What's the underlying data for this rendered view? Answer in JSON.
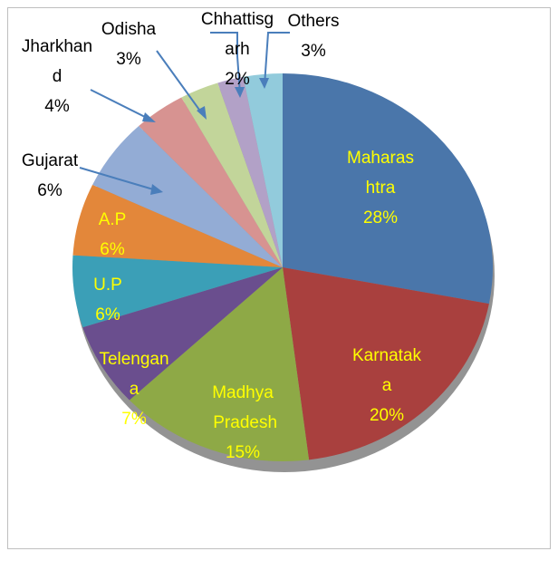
{
  "chart_data": {
    "type": "pie",
    "categories": [
      "Maharashtra",
      "Karnataka",
      "Madhya Pradesh",
      "Telengana",
      "U.P",
      "A.P",
      "Gujarat",
      "Jharkhand",
      "Odisha",
      "Chhattisgarh",
      "Others"
    ],
    "values": [
      28,
      20,
      15,
      7,
      6,
      6,
      6,
      4,
      3,
      2,
      3
    ],
    "value_labels": [
      "28%",
      "20%",
      "15%",
      "7%",
      "6%",
      "6%",
      "6%",
      "4%",
      "3%",
      "2%",
      "3%"
    ],
    "colors": [
      "#4a76aa",
      "#a9403e",
      "#8ea946",
      "#6a4e8e",
      "#3b9fb7",
      "#e3873a",
      "#93acd5",
      "#d79391",
      "#c2d59a",
      "#b2a1c7",
      "#92cbdc"
    ]
  }
}
